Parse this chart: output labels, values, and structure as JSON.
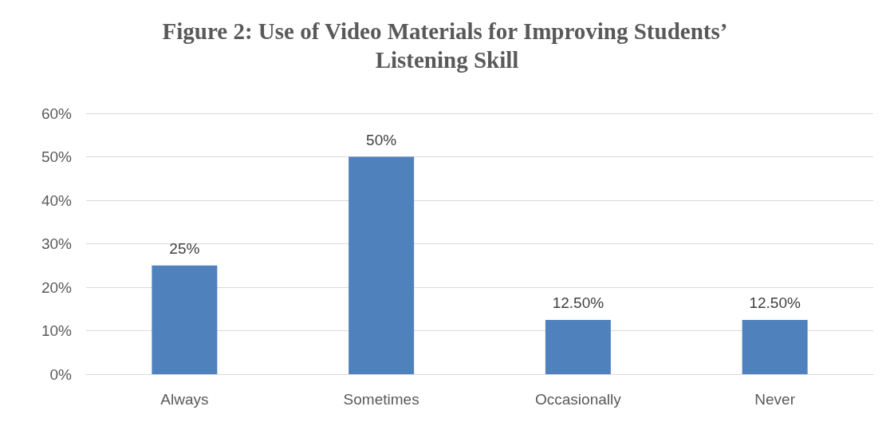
{
  "chart_data": {
    "type": "bar",
    "title": "Figure 2: Use of Video Materials for Improving Students’ Listening Skill",
    "categories": [
      "Always",
      "Sometimes",
      "Occasionally",
      "Never"
    ],
    "values": [
      25,
      50,
      12.5,
      12.5
    ],
    "value_labels": [
      "25%",
      "50%",
      "12.50%",
      "12.50%"
    ],
    "color": "#4f81bd",
    "ylim": [
      0,
      60
    ],
    "yticks": [
      {
        "value": 0,
        "label": "0%"
      },
      {
        "value": 10,
        "label": "10%"
      },
      {
        "value": 20,
        "label": "20%"
      },
      {
        "value": 30,
        "label": "30%"
      },
      {
        "value": 40,
        "label": "40%"
      },
      {
        "value": 50,
        "label": "50%"
      },
      {
        "value": 60,
        "label": "60%"
      }
    ],
    "grid": "y"
  }
}
